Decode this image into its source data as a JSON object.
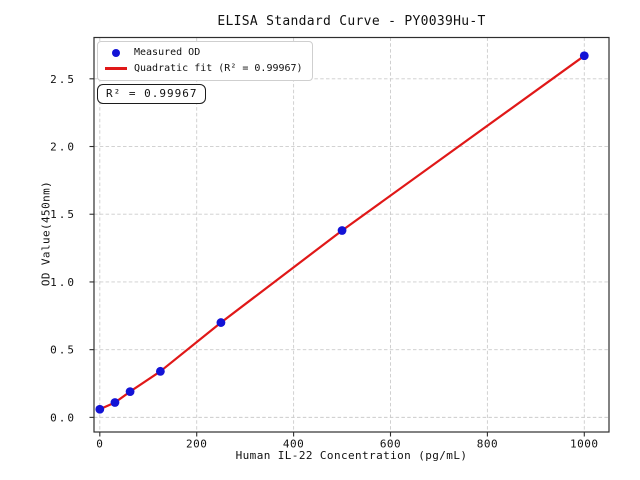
{
  "figure": {
    "title": "ELISA Standard Curve - PY0039Hu-T",
    "x_axis_label": "Human IL-22 Concentration (pg/mL)",
    "y_axis_label": "OD Value(450nm)",
    "annotation": "R² = 0.99967"
  },
  "legend": {
    "position": "upper left",
    "items": [
      {
        "label": "Measured OD",
        "marker": "blue-dot-icon",
        "color": "#1313d6"
      },
      {
        "label": "Quadratic fit (R² = 0.99967)",
        "marker": "red-line-icon",
        "color": "#e01818"
      }
    ]
  },
  "chart_data": {
    "type": "scatter",
    "title": "ELISA Standard Curve - PY0039Hu-T",
    "xlabel": "Human IL-22 Concentration (pg/mL)",
    "ylabel": "OD Value(450nm)",
    "x_ticks": [
      0,
      200,
      400,
      600,
      800,
      1000
    ],
    "y_ticks": [
      0.0,
      0.5,
      1.0,
      1.5,
      2.0,
      2.5
    ],
    "xlim": [
      -12,
      1051
    ],
    "ylim": [
      -0.108,
      2.805
    ],
    "grid": true,
    "legend_position": "upper left",
    "r_squared": 0.99967,
    "series": [
      {
        "name": "Measured OD",
        "type": "scatter",
        "color": "#1313d6",
        "x": [
          0,
          31.25,
          62.5,
          125,
          250,
          500,
          1000
        ],
        "y": [
          0.06,
          0.11,
          0.19,
          0.34,
          0.7,
          1.38,
          2.67
        ]
      },
      {
        "name": "Quadratic fit (R² = 0.99967)",
        "type": "line",
        "color": "#e01818",
        "r_squared": 0.99967
      }
    ],
    "colors": {
      "grid": "#cccccc",
      "spine": "#2e2e2e",
      "text": "#111111",
      "background": "#ffffff"
    }
  }
}
